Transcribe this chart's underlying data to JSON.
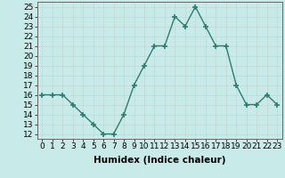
{
  "xlabel": "Humidex (Indice chaleur)",
  "x": [
    0,
    1,
    2,
    3,
    4,
    5,
    6,
    7,
    8,
    9,
    10,
    11,
    12,
    13,
    14,
    15,
    16,
    17,
    18,
    19,
    20,
    21,
    22,
    23
  ],
  "y": [
    16,
    16,
    16,
    15,
    14,
    13,
    12,
    12,
    14,
    17,
    19,
    21,
    21,
    24,
    23,
    25,
    23,
    21,
    21,
    17,
    15,
    15,
    16,
    15
  ],
  "line_color": "#2e7d6e",
  "marker": "+",
  "marker_size": 4,
  "bg_color": "#c8eae8",
  "grid_color": "#c0d8d5",
  "ylim": [
    11.5,
    25.5
  ],
  "yticks": [
    12,
    13,
    14,
    15,
    16,
    17,
    18,
    19,
    20,
    21,
    22,
    23,
    24,
    25
  ],
  "xlim": [
    -0.5,
    23.5
  ],
  "tick_fontsize": 6.5,
  "xlabel_fontsize": 7.5,
  "line_width": 1.0
}
